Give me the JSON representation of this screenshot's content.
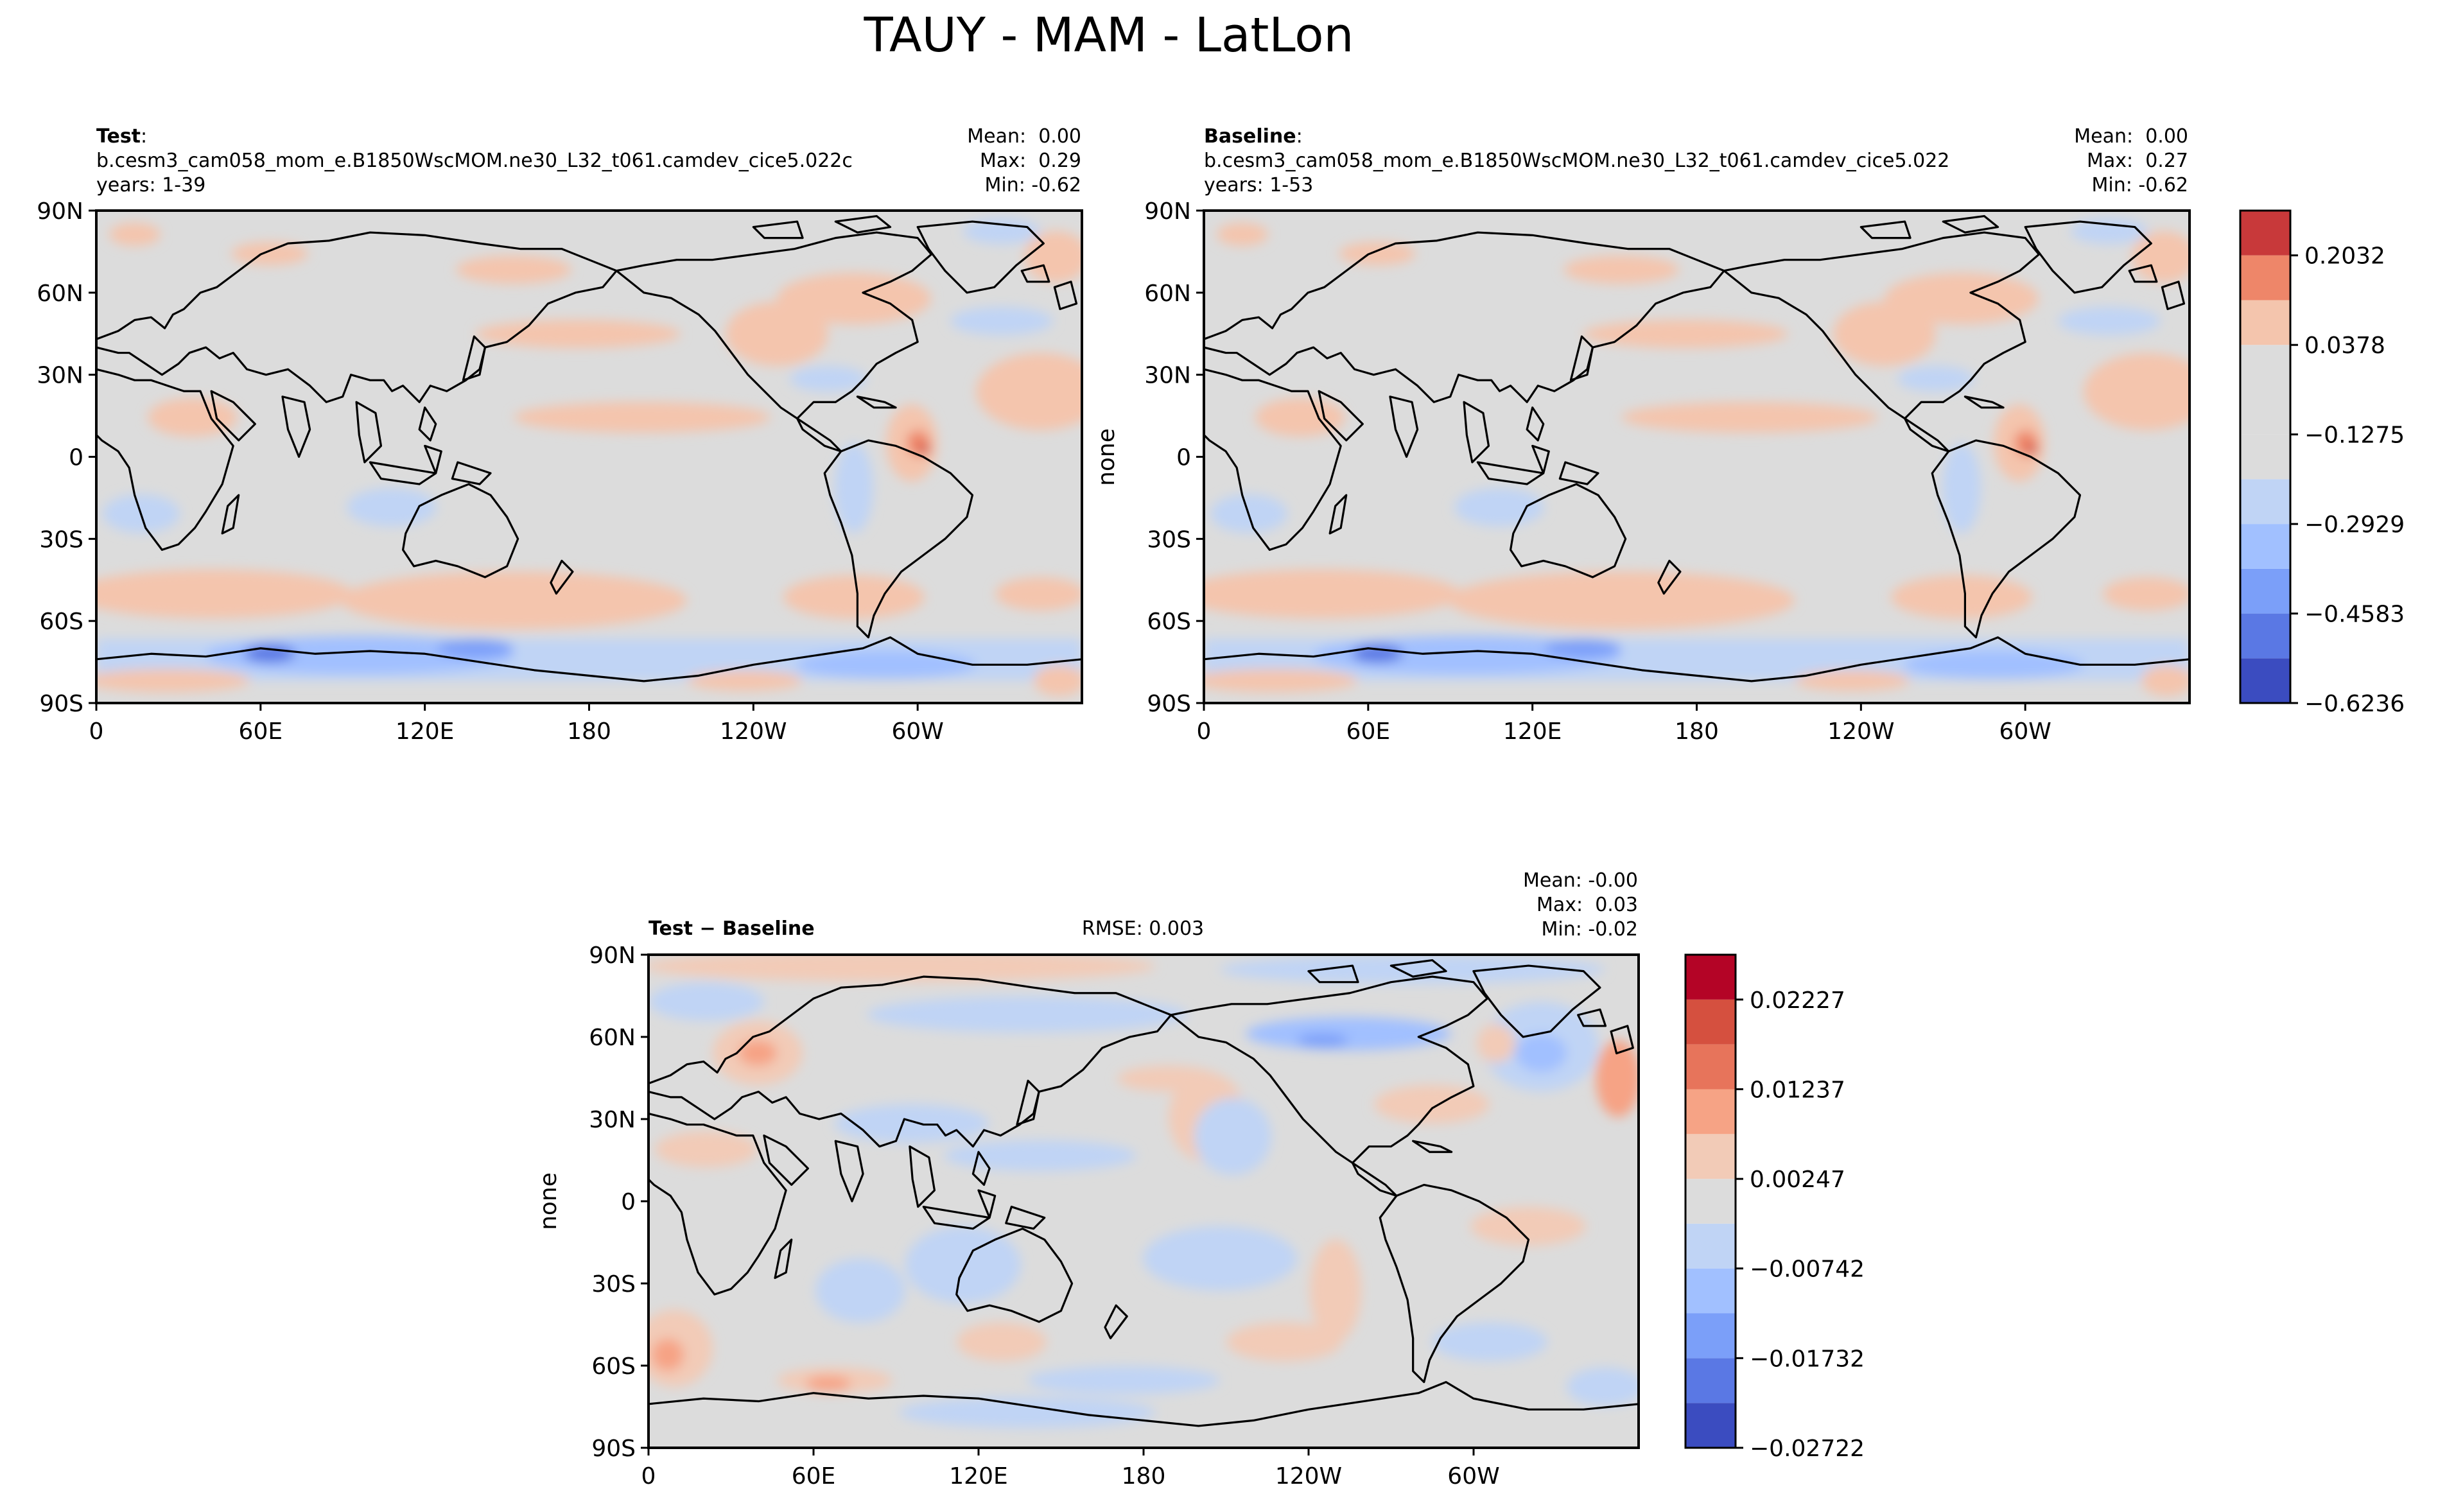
{
  "figure": {
    "title": "TAUY - MAM - LatLon"
  },
  "colors": {
    "land_mask": "#d9d9d9",
    "coast": "#000000",
    "frame": "#000000",
    "scale1": [
      "#3b4cc0",
      "#5b7be0",
      "#7c9ff5",
      "#9fbdfa",
      "#c0d4f5",
      "#dcdcdc",
      "#f2cbb7",
      "#f6a385",
      "#e7745b",
      "#c8393a"
    ],
    "scale2": [
      "#3b4cc0",
      "#5b7be0",
      "#7c9ff5",
      "#9fbdfa",
      "#c0d4f5",
      "#dcdcdc",
      "#f2cbb7",
      "#f6a385",
      "#e7745b",
      "#c8393a"
    ]
  },
  "chart_data": [
    {
      "type": "heatmap",
      "name": "test",
      "label_bold": "Test",
      "label_rest": ":",
      "case": "b.cesm3_cam058_mom_e.B1850WscMOM.ne30_L32_t061.camdev_cice5.022c",
      "years": "years: 1-39",
      "stats": [
        "Mean:  0.00",
        "Max:  0.29",
        "Min: -0.62"
      ],
      "ylabel": "",
      "yticks": [
        "90N",
        "60N",
        "30N",
        "0",
        "30S",
        "60S",
        "90S"
      ],
      "xticks": [
        "0",
        "60E",
        "120E",
        "180",
        "120W",
        "60W"
      ],
      "xlim": [
        0,
        360
      ],
      "ylim": [
        -90,
        90
      ]
    },
    {
      "type": "heatmap",
      "name": "baseline",
      "label_bold": "Baseline",
      "label_rest": ":",
      "case": "b.cesm3_cam058_mom_e.B1850WscMOM.ne30_L32_t061.camdev_cice5.022",
      "years": "years: 1-53",
      "stats": [
        "Mean:  0.00",
        "Max:  0.27",
        "Min: -0.62"
      ],
      "ylabel": "none",
      "yticks": [
        "90N",
        "60N",
        "30N",
        "0",
        "30S",
        "60S",
        "90S"
      ],
      "xticks": [
        "0",
        "60E",
        "120E",
        "180",
        "120W",
        "60W"
      ],
      "xlim": [
        0,
        360
      ],
      "ylim": [
        -90,
        90
      ],
      "colorbar": {
        "levels": [
          -0.6236,
          -0.5409,
          -0.4583,
          -0.3756,
          -0.2929,
          -0.2102,
          -0.1275,
          -0.0449,
          0.0378,
          0.1205,
          0.2032,
          0.2859
        ],
        "tick_labels": [
          "0.2032",
          "0.0378",
          "−0.1275",
          "−0.2929",
          "−0.4583",
          "−0.6236"
        ],
        "tick_values": [
          0.2032,
          0.0378,
          -0.1275,
          -0.2929,
          -0.4583,
          -0.6236
        ],
        "colors": [
          "#3b4cc0",
          "#5a78e4",
          "#7b9ff9",
          "#a1c0ff",
          "#c0d4f5",
          "#dcdcdc",
          "#dcdcdc",
          "#dcdcdc",
          "#f4c5ad",
          "#ee8669",
          "#c8393a"
        ]
      }
    },
    {
      "type": "heatmap",
      "name": "diff",
      "label_bold": "Test",
      "label_rest": " − Baseline",
      "rmse": "RMSE: 0.003",
      "stats": [
        "Mean: -0.00",
        "Max:  0.03",
        "Min: -0.02"
      ],
      "ylabel": "none",
      "yticks": [
        "90N",
        "60N",
        "30N",
        "0",
        "30S",
        "60S",
        "90S"
      ],
      "xticks": [
        "0",
        "60E",
        "120E",
        "180",
        "120W",
        "60W"
      ],
      "xlim": [
        0,
        360
      ],
      "ylim": [
        -90,
        90
      ],
      "colorbar": {
        "levels": [
          -0.02722,
          -0.02227,
          -0.01732,
          -0.01237,
          -0.00742,
          -0.00247,
          0.00247,
          0.00742,
          0.01237,
          0.01732,
          0.02227,
          0.02722
        ],
        "tick_labels": [
          "0.02227",
          "0.01237",
          "0.00247",
          "−0.00742",
          "−0.01732",
          "−0.02722"
        ],
        "tick_values": [
          0.02227,
          0.01237,
          0.00247,
          -0.00742,
          -0.01732,
          -0.02722
        ],
        "colors": [
          "#3b4cc0",
          "#5a78e4",
          "#7b9ff9",
          "#a1c0ff",
          "#c0d4f5",
          "#dcdcdc",
          "#f2cbb7",
          "#f6a385",
          "#e7745b",
          "#d5503f",
          "#b40426"
        ]
      }
    }
  ]
}
